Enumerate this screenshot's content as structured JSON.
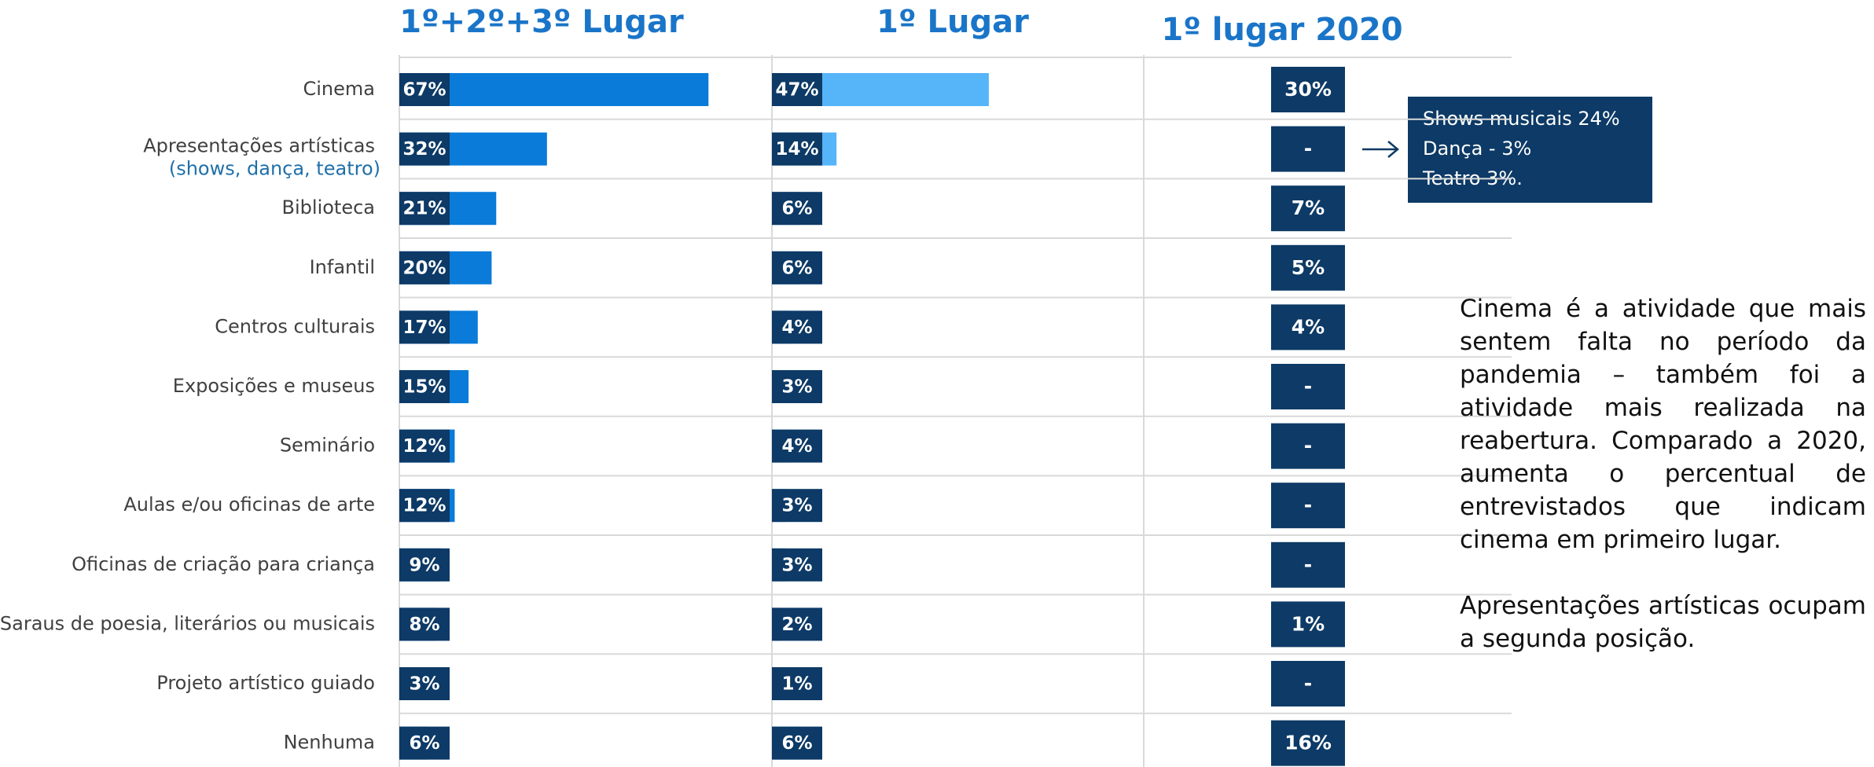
{
  "chart_data": [
    {
      "type": "bar",
      "title": "1º+2º+3º Lugar",
      "categories": [
        "Cinema",
        "Apresentações artísticas",
        "Biblioteca",
        "Infantil",
        "Centros culturais",
        "Exposições e museus",
        "Seminário",
        "Aulas e/ou oficinas de arte",
        "Oficinas de criação para criança",
        "Saraus de poesia, literários ou musicais",
        "Projeto artístico guiado",
        "Nenhuma"
      ],
      "values": [
        67,
        32,
        21,
        20,
        17,
        15,
        12,
        12,
        9,
        8,
        3,
        6
      ],
      "value_labels": [
        "67%",
        "32%",
        "21%",
        "20%",
        "17%",
        "15%",
        "12%",
        "12%",
        "9%",
        "8%",
        "3%",
        "6%"
      ],
      "color": "#0a7bd8",
      "xlim": [
        0,
        100
      ]
    },
    {
      "type": "bar",
      "title": "1º Lugar",
      "values": [
        47,
        14,
        6,
        6,
        4,
        3,
        4,
        3,
        3,
        2,
        1,
        6
      ],
      "value_labels": [
        "47%",
        "14%",
        "6%",
        "6%",
        "4%",
        "3%",
        "4%",
        "3%",
        "3%",
        "2%",
        "1%",
        "6%"
      ],
      "color": "#56b4f8",
      "xlim": [
        0,
        100
      ]
    },
    {
      "type": "label",
      "title": "1º lugar 2020",
      "values": [
        30,
        null,
        7,
        5,
        4,
        null,
        null,
        null,
        null,
        1,
        null,
        16
      ],
      "value_labels": [
        "30%",
        "-",
        "7%",
        "5%",
        "4%",
        "-",
        "-",
        "-",
        "-",
        "1%",
        "-",
        "16%"
      ],
      "color": "#0d3a66"
    }
  ],
  "annotations": {
    "detail": "(shows, dança, teatro)",
    "box": [
      "Shows musicais 24%",
      "Dança - 3%",
      "Teatro 3%."
    ],
    "text": [
      "Cinema é a atividade que mais sentem falta no período da pandemia – também foi a atividade mais realizada na reabertura. Comparado a 2020, aumenta o percentual de entrevistados que indicam cinema em primeiro lugar.",
      "Apresentações artísticas ocupam a segunda posição."
    ]
  }
}
